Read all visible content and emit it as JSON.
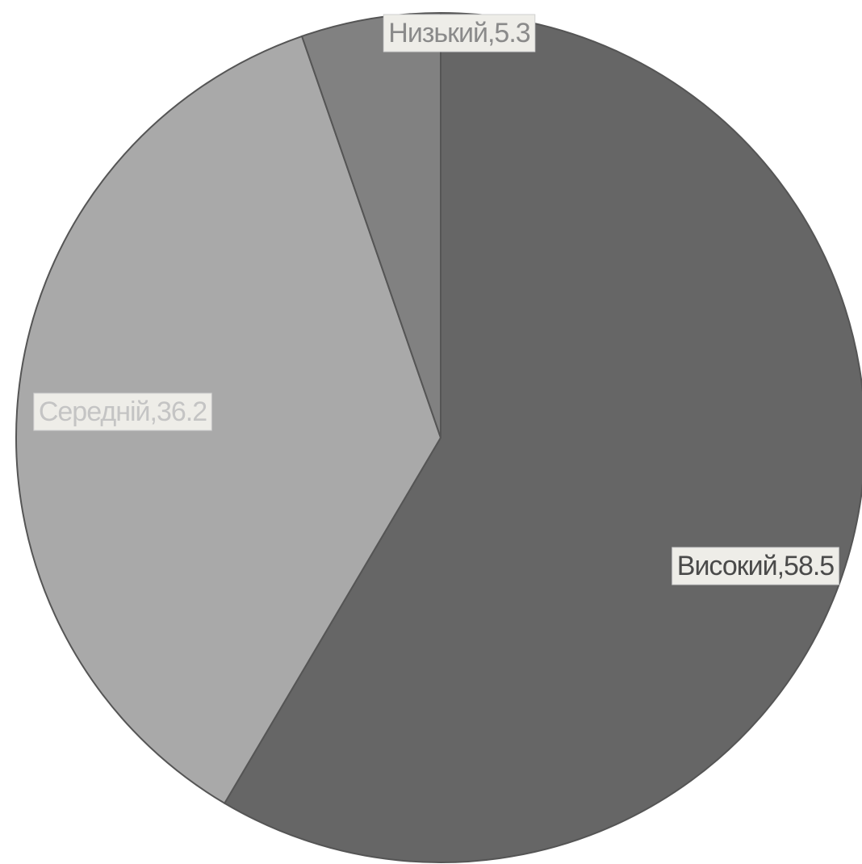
{
  "chart_data": {
    "type": "pie",
    "title": "",
    "start": "top",
    "direction": "clockwise",
    "slices": [
      {
        "label": "Високий,58.5",
        "name": "Високий",
        "value": 58.5,
        "color": "#666666",
        "text_color": "#4a4a4a"
      },
      {
        "label": "Середній,36.2",
        "name": "Середній",
        "value": 36.2,
        "color": "#a9a9a9",
        "text_color": "#c4c4c4"
      },
      {
        "label": "Низький,5.3",
        "name": "Низький",
        "value": 5.3,
        "color": "#818181",
        "text_color": "#8a8a8a"
      }
    ]
  }
}
